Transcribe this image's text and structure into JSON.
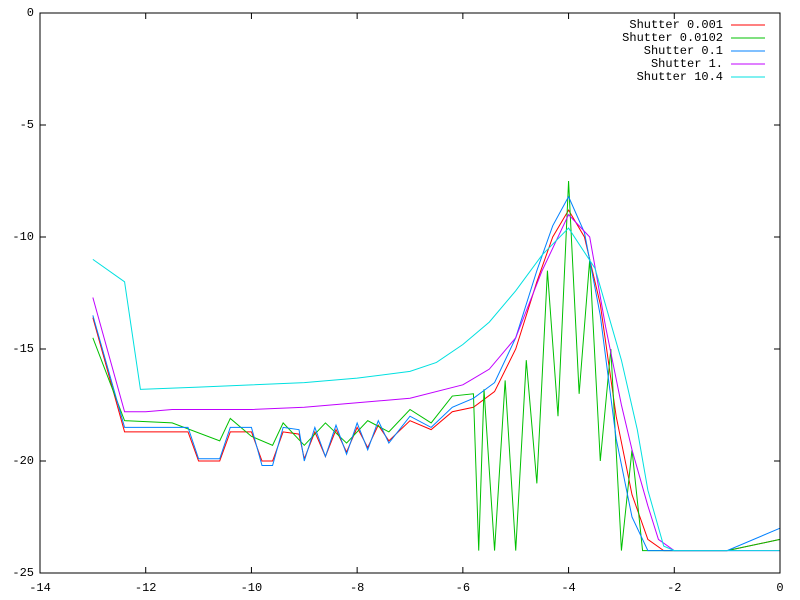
{
  "chart_data": {
    "type": "line",
    "xlim": [
      -14,
      0
    ],
    "xticks": [
      -14,
      -12,
      -10,
      -8,
      -6,
      -4,
      -2,
      0
    ],
    "ylim": [
      -25,
      0
    ],
    "yticks": [
      -25,
      -20,
      -15,
      -10,
      -5,
      0
    ],
    "legend": "top-right",
    "series": [
      {
        "name": "Shutter 0.001",
        "color": "#ff0000",
        "x": [
          -13,
          -12.4,
          -11.2,
          -11,
          -10.6,
          -10.4,
          -10,
          -9.8,
          -9.6,
          -9.4,
          -9.1,
          -9,
          -8.8,
          -8.6,
          -8.4,
          -8.2,
          -8,
          -7.8,
          -7.6,
          -7.4,
          -7,
          -6.6,
          -6.2,
          -5.8,
          -5.4,
          -5,
          -4.6,
          -4.3,
          -4,
          -3.7,
          -3.4,
          -3.1,
          -2.8,
          -2.5,
          -2.2,
          -2,
          -1,
          0
        ],
        "values": [
          -13.6,
          -18.7,
          -18.7,
          -20,
          -20,
          -18.7,
          -18.7,
          -20,
          -20,
          -18.7,
          -18.8,
          -19.9,
          -18.7,
          -19.8,
          -18.6,
          -19.6,
          -18.5,
          -19.4,
          -18.4,
          -19.1,
          -18.2,
          -18.6,
          -17.8,
          -17.6,
          -16.9,
          -15,
          -12,
          -10,
          -8.8,
          -10,
          -13,
          -18,
          -21.5,
          -23.5,
          -24,
          -24,
          -24,
          -23.5
        ]
      },
      {
        "name": "Shutter 0.0102",
        "color": "#00c000",
        "x": [
          -13,
          -12.4,
          -11.5,
          -10.6,
          -10.4,
          -10,
          -9.6,
          -9.4,
          -9,
          -8.6,
          -8.2,
          -7.8,
          -7.4,
          -7,
          -6.6,
          -6.2,
          -5.8,
          -5.7,
          -5.6,
          -5.4,
          -5.2,
          -5,
          -4.8,
          -4.6,
          -4.4,
          -4.2,
          -4,
          -3.8,
          -3.6,
          -3.4,
          -3.2,
          -3,
          -2.8,
          -2.6,
          -2,
          -1,
          0
        ],
        "values": [
          -14.5,
          -18.2,
          -18.3,
          -19.1,
          -18.1,
          -18.9,
          -19.3,
          -18.3,
          -19.3,
          -18.3,
          -19.2,
          -18.2,
          -18.7,
          -17.7,
          -18.3,
          -17.1,
          -17,
          -24,
          -16.8,
          -24,
          -16.4,
          -24,
          -15.5,
          -21,
          -11.5,
          -18,
          -7.5,
          -17,
          -11,
          -20,
          -15,
          -24,
          -19.5,
          -24,
          -24,
          -24,
          -23.5
        ]
      },
      {
        "name": "Shutter 0.1",
        "color": "#0080ff",
        "x": [
          -13,
          -12.4,
          -11.2,
          -11,
          -10.6,
          -10.4,
          -10,
          -9.8,
          -9.6,
          -9.4,
          -9.1,
          -9,
          -8.8,
          -8.6,
          -8.4,
          -8.2,
          -8,
          -7.8,
          -7.6,
          -7.4,
          -7,
          -6.6,
          -6.2,
          -5.8,
          -5.4,
          -5,
          -4.6,
          -4.3,
          -4,
          -3.7,
          -3.4,
          -3.1,
          -2.8,
          -2.5,
          -2.2,
          -2,
          -1,
          0
        ],
        "values": [
          -13.5,
          -18.5,
          -18.5,
          -19.9,
          -19.9,
          -18.5,
          -18.5,
          -20.2,
          -20.2,
          -18.5,
          -18.6,
          -20,
          -18.5,
          -19.8,
          -18.4,
          -19.7,
          -18.3,
          -19.5,
          -18.2,
          -19.2,
          -18,
          -18.5,
          -17.6,
          -17.2,
          -16.5,
          -14.5,
          -11.5,
          -9.5,
          -8.2,
          -9.8,
          -13.5,
          -19,
          -22.5,
          -24,
          -24,
          -24,
          -24,
          -23
        ]
      },
      {
        "name": "Shutter 1.",
        "color": "#c000ff",
        "x": [
          -13,
          -12.4,
          -12,
          -11.5,
          -10,
          -9,
          -8,
          -7,
          -6,
          -5.5,
          -5,
          -4.5,
          -4,
          -3.6,
          -3.3,
          -3,
          -2.8,
          -2.5,
          -2.3,
          -2,
          0
        ],
        "values": [
          -12.7,
          -17.8,
          -17.8,
          -17.7,
          -17.7,
          -17.6,
          -17.4,
          -17.2,
          -16.6,
          -15.9,
          -14.5,
          -11.5,
          -9,
          -10,
          -14,
          -17.5,
          -19.5,
          -22,
          -23.5,
          -24,
          -24
        ]
      },
      {
        "name": "Shutter 10.4",
        "color": "#00e0e0",
        "x": [
          -13,
          -12.4,
          -12.1,
          -11,
          -10,
          -9,
          -8,
          -7,
          -6.5,
          -6,
          -5.5,
          -5,
          -4.5,
          -4,
          -3.5,
          -3,
          -2.7,
          -2.5,
          -2.2,
          -2,
          0
        ],
        "values": [
          -11,
          -12,
          -16.8,
          -16.7,
          -16.6,
          -16.5,
          -16.3,
          -16,
          -15.6,
          -14.8,
          -13.8,
          -12.4,
          -10.8,
          -9.6,
          -11.4,
          -15.5,
          -18.6,
          -21.3,
          -23.8,
          -24,
          -24
        ]
      }
    ]
  }
}
